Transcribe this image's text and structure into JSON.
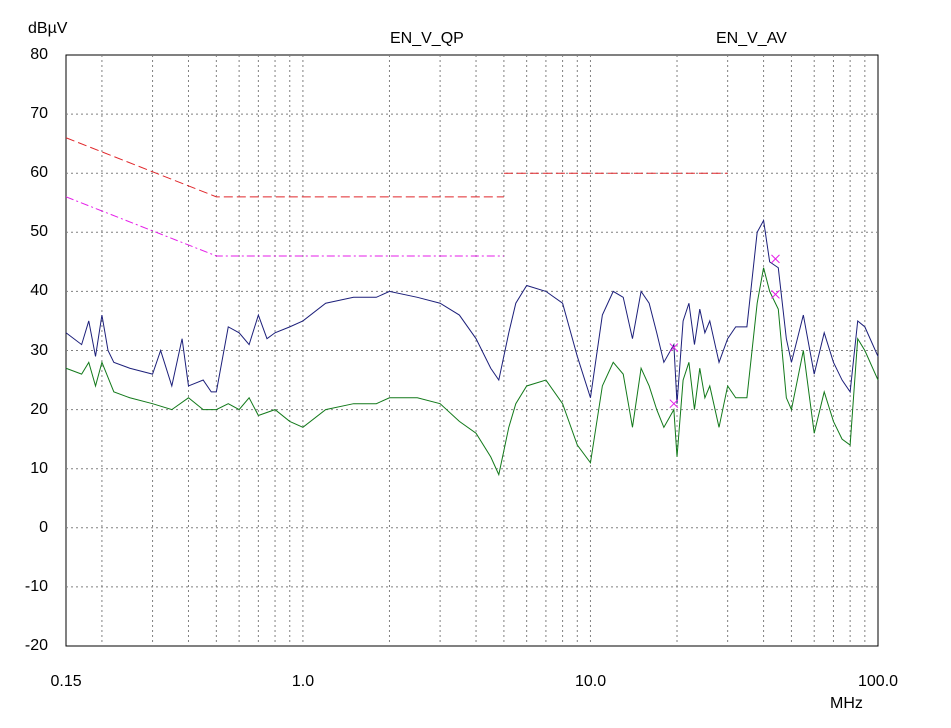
{
  "chart_data": {
    "type": "line",
    "title_left": "EN_V_QP",
    "title_right": "EN_V_AV",
    "ylabel": "dBµV",
    "xlabel": "MHz",
    "x_scale": "log",
    "xlim": [
      0.15,
      100.0
    ],
    "ylim": [
      -20,
      80
    ],
    "yticks": [
      80,
      70,
      60,
      50,
      40,
      30,
      20,
      10,
      0,
      -10,
      -20
    ],
    "xtick_labels": [
      {
        "value": 0.15,
        "label": "0.15"
      },
      {
        "value": 1.0,
        "label": "1.0"
      },
      {
        "value": 10.0,
        "label": "10.0"
      },
      {
        "value": 100.0,
        "label": "100.0"
      }
    ],
    "grid": true,
    "colors": {
      "qp_limit": "#e0262a",
      "av_limit": "#e51ee8",
      "peak_trace": "#1c1f7a",
      "avg_trace": "#12791a",
      "marker": "#e51ee8"
    },
    "limit_lines": [
      {
        "style": "qp",
        "x": [
          0.15,
          0.5,
          0.5,
          5.0
        ],
        "y": [
          66,
          56,
          56,
          56
        ]
      },
      {
        "style": "qp",
        "x": [
          5.0,
          30.0
        ],
        "y": [
          60,
          60
        ]
      },
      {
        "style": "av",
        "x": [
          0.15,
          0.5,
          0.5,
          5.0
        ],
        "y": [
          56,
          46,
          46,
          46
        ]
      }
    ],
    "series": [
      {
        "key": "peak",
        "x": [
          0.15,
          0.17,
          0.18,
          0.19,
          0.2,
          0.21,
          0.22,
          0.25,
          0.3,
          0.32,
          0.35,
          0.38,
          0.4,
          0.45,
          0.48,
          0.5,
          0.55,
          0.6,
          0.65,
          0.7,
          0.75,
          0.8,
          0.9,
          1.0,
          1.2,
          1.5,
          1.8,
          2.0,
          2.5,
          3.0,
          3.5,
          4.0,
          4.5,
          4.8,
          5.2,
          5.5,
          6.0,
          7.0,
          8.0,
          9.0,
          10.0,
          11.0,
          12.0,
          13.0,
          14.0,
          15.0,
          16.0,
          17.0,
          18.0,
          19.5,
          20.0,
          21.0,
          22.0,
          23.0,
          24.0,
          25.0,
          26.0,
          28.0,
          30.0,
          32.0,
          35.0,
          38.0,
          40.0,
          42.0,
          45.0,
          48.0,
          50.0,
          55.0,
          60.0,
          65.0,
          70.0,
          75.0,
          80.0,
          85.0,
          90.0,
          100.0
        ],
        "y": [
          33,
          31,
          35,
          29,
          36,
          30,
          28,
          27,
          26,
          30,
          24,
          32,
          24,
          25,
          23,
          23,
          34,
          33,
          31,
          36,
          32,
          33,
          34,
          35,
          38,
          39,
          39,
          40,
          39,
          38,
          36,
          32,
          27,
          25,
          33,
          38,
          41,
          40,
          38,
          29,
          22,
          36,
          40,
          39,
          32,
          40,
          38,
          33,
          28,
          31,
          21,
          35,
          38,
          31,
          37,
          33,
          35,
          28,
          32,
          34,
          34,
          50,
          52,
          45,
          44,
          32,
          28,
          36,
          26,
          33,
          28,
          25,
          23,
          35,
          34,
          29
        ]
      },
      {
        "key": "average",
        "x": [
          0.15,
          0.17,
          0.18,
          0.19,
          0.2,
          0.22,
          0.25,
          0.3,
          0.35,
          0.4,
          0.45,
          0.5,
          0.55,
          0.6,
          0.65,
          0.7,
          0.8,
          0.9,
          1.0,
          1.2,
          1.5,
          1.8,
          2.0,
          2.5,
          3.0,
          3.5,
          4.0,
          4.5,
          4.8,
          5.2,
          5.5,
          6.0,
          7.0,
          8.0,
          9.0,
          10.0,
          11.0,
          12.0,
          13.0,
          14.0,
          15.0,
          16.0,
          17.0,
          18.0,
          19.5,
          20.0,
          21.0,
          22.0,
          23.0,
          24.0,
          25.0,
          26.0,
          28.0,
          30.0,
          32.0,
          35.0,
          38.0,
          40.0,
          42.0,
          45.0,
          48.0,
          50.0,
          55.0,
          60.0,
          65.0,
          70.0,
          75.0,
          80.0,
          85.0,
          90.0,
          100.0
        ],
        "y": [
          27,
          26,
          28,
          24,
          28,
          23,
          22,
          21,
          20,
          22,
          20,
          20,
          21,
          20,
          22,
          19,
          20,
          18,
          17,
          20,
          21,
          21,
          22,
          22,
          21,
          18,
          16,
          12,
          9,
          17,
          21,
          24,
          25,
          21,
          14,
          11,
          24,
          28,
          26,
          17,
          27,
          24,
          20,
          17,
          20,
          12,
          25,
          28,
          20,
          27,
          22,
          24,
          17,
          24,
          22,
          22,
          38,
          44,
          40,
          37,
          22,
          20,
          30,
          16,
          23,
          18,
          15,
          14,
          32,
          30,
          25
        ]
      }
    ],
    "markers": [
      {
        "x": 19.5,
        "y": 30.5
      },
      {
        "x": 19.5,
        "y": 21
      },
      {
        "x": 44.0,
        "y": 45.5
      },
      {
        "x": 44.0,
        "y": 39.5
      }
    ]
  }
}
